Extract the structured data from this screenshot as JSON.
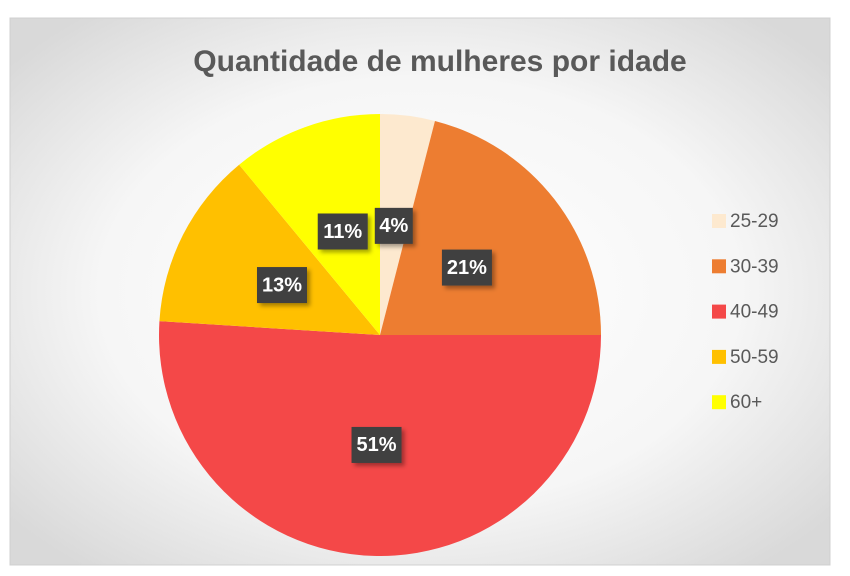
{
  "chart_data": {
    "type": "pie",
    "title": "Quantidade de mulheres por idade",
    "categories": [
      "25-29",
      "30-39",
      "40-49",
      "50-59",
      "60+"
    ],
    "values": [
      4,
      21,
      51,
      13,
      11
    ],
    "value_labels": [
      "4%",
      "21%",
      "51%",
      "13%",
      "11%"
    ],
    "colors": [
      "#fde9cf",
      "#ed7d31",
      "#f44848",
      "#ffc000",
      "#ffff00"
    ],
    "legend": "right"
  }
}
